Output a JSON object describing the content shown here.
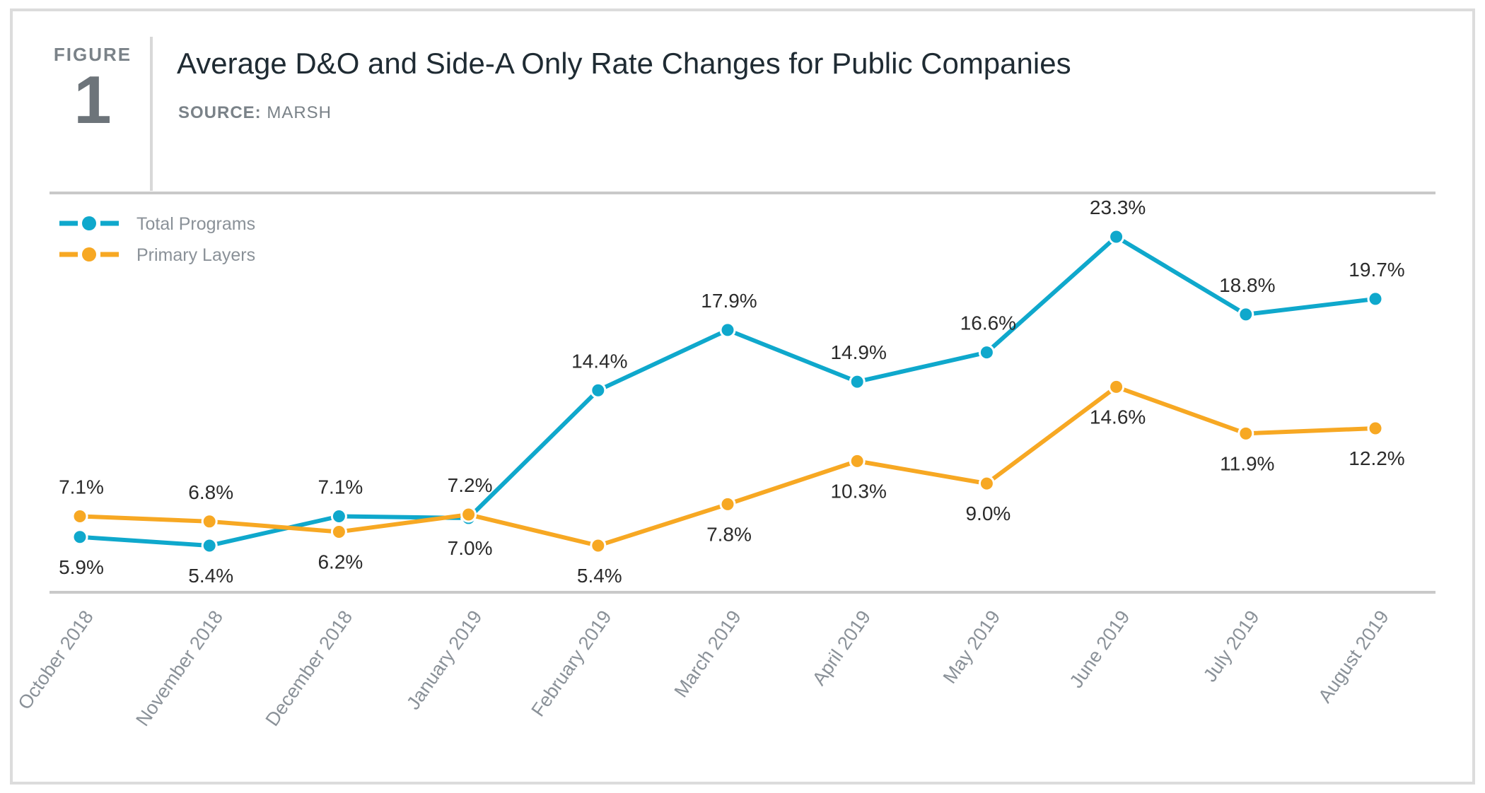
{
  "figure": {
    "label": "FIGURE",
    "number": "1"
  },
  "source": {
    "label": "SOURCE:",
    "value": "MARSH"
  },
  "colors": {
    "total": "#0fa8cc",
    "primary": "#f7a823",
    "axis": "#c9c9c9",
    "text": "#2b2b2b",
    "tick": "#8a9198"
  },
  "chart_data": {
    "type": "line",
    "title": "Average D&O and Side-A Only Rate Changes for Public Companies",
    "xlabel": "",
    "ylabel": "",
    "ylim": [
      0,
      25
    ],
    "grid": false,
    "legend": "top-left",
    "categories": [
      "October 2018",
      "November 2018",
      "December 2018",
      "January 2019",
      "February 2019",
      "March 2019",
      "April 2019",
      "May 2019",
      "June 2019",
      "July 2019",
      "August 2019"
    ],
    "series": [
      {
        "name": "Total Programs",
        "color": "#0fa8cc",
        "values": [
          5.9,
          5.4,
          7.1,
          7.0,
          14.4,
          17.9,
          14.9,
          16.6,
          23.3,
          18.8,
          19.7
        ],
        "labels": [
          "5.9%",
          "5.4%",
          "7.1%",
          "7.0%",
          "14.4%",
          "17.9%",
          "14.9%",
          "16.6%",
          "23.3%",
          "18.8%",
          "19.7%"
        ],
        "label_pos": [
          "below",
          "below",
          "above",
          "below",
          "above",
          "above",
          "above",
          "above",
          "above",
          "above",
          "above"
        ]
      },
      {
        "name": "Primary Layers",
        "color": "#f7a823",
        "values": [
          7.1,
          6.8,
          6.2,
          7.2,
          5.4,
          7.8,
          10.3,
          9.0,
          14.6,
          11.9,
          12.2
        ],
        "labels": [
          "7.1%",
          "6.8%",
          "6.2%",
          "7.2%",
          "5.4%",
          "7.8%",
          "10.3%",
          "9.0%",
          "14.6%",
          "11.9%",
          "12.2%"
        ],
        "label_pos": [
          "above",
          "above",
          "below",
          "above",
          "below",
          "below",
          "below",
          "below",
          "below",
          "below",
          "below"
        ]
      }
    ]
  }
}
